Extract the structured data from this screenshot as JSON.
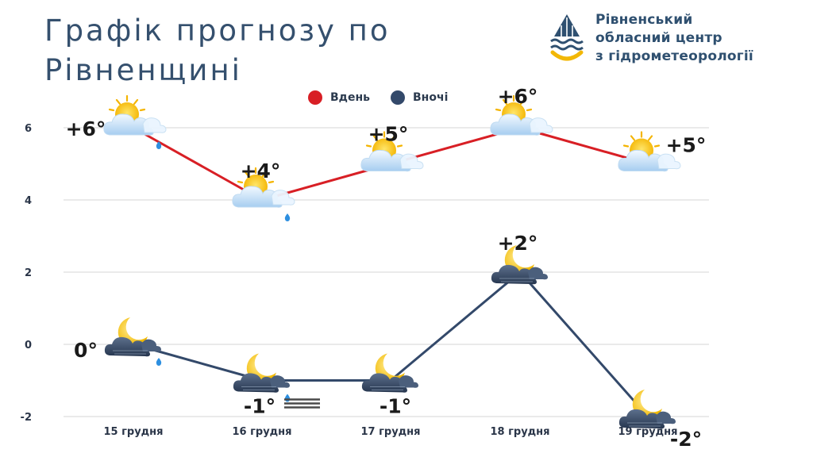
{
  "title": "Графік прогнозу по Рівненщині",
  "organization": {
    "name_line1": "Рівненський",
    "name_line2": "обласний центр",
    "name_line3": "з гідрометеорології"
  },
  "colors": {
    "day": "#d81f25",
    "night": "#33496a",
    "title": "#35506e",
    "grid": "#d6d6d6"
  },
  "chart_data": {
    "type": "line",
    "categories": [
      "15 грудня",
      "16 грудня",
      "17 грудня",
      "18 грудня",
      "19 грудня"
    ],
    "series": [
      {
        "name": "Вдень",
        "values": [
          6,
          4,
          5,
          6,
          5
        ],
        "labels": [
          "+6°",
          "+4°",
          "+5°",
          "+6°",
          "+5°"
        ],
        "icons": [
          "sun-cloud-rain-icon",
          "sun-cloud-rain-icon",
          "sun-cloud-icon",
          "sun-cloud-icon",
          "sun-cloud-icon"
        ]
      },
      {
        "name": "Вночі",
        "values": [
          0,
          -1,
          -1,
          2,
          -2
        ],
        "labels": [
          "0°",
          "-1°",
          "-1°",
          "+2°",
          "-2°"
        ],
        "icons": [
          "moon-cloud-rain-icon",
          "moon-cloud-rain-fog-icon",
          "moon-cloud-icon",
          "moon-cloud-icon",
          "moon-cloud-icon"
        ]
      }
    ],
    "yticks": [
      -2,
      0,
      2,
      4,
      6
    ],
    "ylim": [
      -2,
      6.5
    ],
    "grid": true,
    "legend_position": "top"
  }
}
